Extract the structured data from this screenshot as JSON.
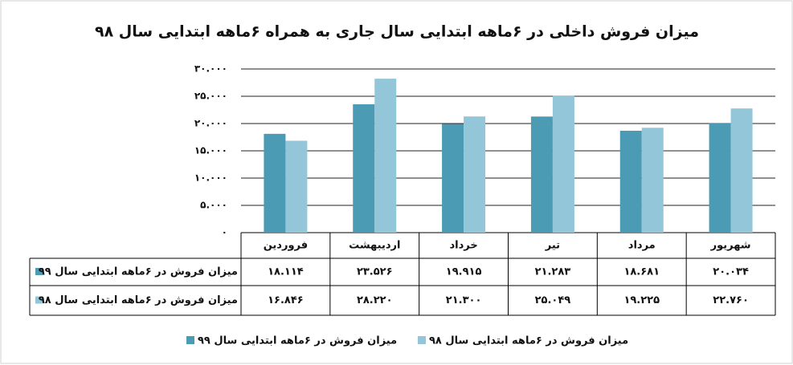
{
  "chart_data": {
    "type": "bar",
    "title": "میزان فروش داخلی در ۶ماهه ابتدایی سال جاری به همراه ۶ماهه ابتدایی سال ۹۸",
    "categories": [
      "فروردین",
      "اردیبهشت",
      "خرداد",
      "تیر",
      "مرداد",
      "شهریور"
    ],
    "series": [
      {
        "name": "میزان فروش در ۶ماهه ابتدایی سال ۹۹",
        "color": "#4a9bb3",
        "values": [
          18114,
          23526,
          19915,
          21283,
          18681,
          20034
        ],
        "value_labels": [
          "۱۸.۱۱۴",
          "۲۳.۵۲۶",
          "۱۹.۹۱۵",
          "۲۱.۲۸۳",
          "۱۸.۶۸۱",
          "۲۰.۰۳۴"
        ]
      },
      {
        "name": "میزان فروش در ۶ماهه ابتدایی سال ۹۸",
        "color": "#93c6d8",
        "values": [
          16846,
          28220,
          21300,
          25049,
          19225,
          22760
        ],
        "value_labels": [
          "۱۶.۸۴۶",
          "۲۸.۲۲۰",
          "۲۱.۳۰۰",
          "۲۵.۰۴۹",
          "۱۹.۲۲۵",
          "۲۲.۷۶۰"
        ]
      }
    ],
    "ylim": [
      0,
      30000
    ],
    "yticks": [
      {
        "value": 0,
        "label": "۰"
      },
      {
        "value": 5000,
        "label": "۵.۰۰۰"
      },
      {
        "value": 10000,
        "label": "۱۰.۰۰۰"
      },
      {
        "value": 15000,
        "label": "۱۵.۰۰۰"
      },
      {
        "value": 20000,
        "label": "۲۰.۰۰۰"
      },
      {
        "value": 25000,
        "label": "۲۵.۰۰۰"
      },
      {
        "value": 30000,
        "label": "۳۰.۰۰۰"
      }
    ],
    "grid": true,
    "legend": "bottom"
  }
}
